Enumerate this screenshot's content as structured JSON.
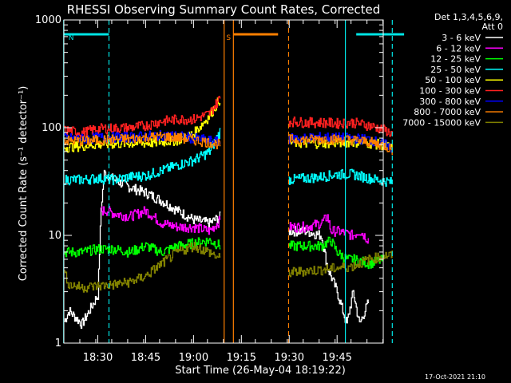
{
  "chart_data": {
    "type": "line",
    "title": "RHESSI Observing Summary Count Rates, Corrected",
    "xlabel": "Start Time (26-May-04 18:19:22)",
    "ylabel": "Corrected Count Rate (s⁻¹ detector⁻¹)",
    "y_scale": "log",
    "ylim": [
      1,
      1000
    ],
    "xlim": [
      "18:19:22",
      "19:59:30"
    ],
    "x_ticks": [
      "18:30",
      "18:45",
      "19:00",
      "19:15",
      "19:30",
      "19:45"
    ],
    "x_tick_minutes": [
      30,
      45,
      60,
      75,
      90,
      105
    ],
    "y_ticks": [
      "1",
      "10",
      "100",
      "1000"
    ],
    "y_tick_values": [
      1,
      10,
      100,
      1000
    ],
    "legend_header": [
      "Det 1,3,4,5,6,9,",
      "Att 0"
    ],
    "legend_position": "top-right",
    "footer_date": "17-Oct-2021 21:10",
    "flag_bars": [
      {
        "label": "N",
        "color": "#00e5e5",
        "x0": 19.3,
        "x1": 33.5
      },
      {
        "label": "S",
        "color": "#ff7f00",
        "x0": 72.5,
        "x1": 86.5
      },
      {
        "label": "",
        "color": "#00e5e5",
        "x0": 111.0,
        "x1": 126.0
      }
    ],
    "vlines": [
      {
        "m": 19.3,
        "color": "#00e5e5",
        "dash": false
      },
      {
        "m": 33.5,
        "color": "#00e5e5",
        "dash": true
      },
      {
        "m": 69.6,
        "color": "#ff7f00",
        "dash": false
      },
      {
        "m": 72.5,
        "color": "#ff7f00",
        "dash": false
      },
      {
        "m": 89.8,
        "color": "#ff7f00",
        "dash": true
      },
      {
        "m": 107.6,
        "color": "#00e5e5",
        "dash": false
      },
      {
        "m": 122.3,
        "color": "#00e5e5",
        "dash": true
      }
    ],
    "series": [
      {
        "name": "3 - 6 keV",
        "color": "#ffffff",
        "seg1": [
          [
            19.5,
            1.6
          ],
          [
            21,
            2.0
          ],
          [
            25,
            1.5
          ],
          [
            30,
            2.8
          ],
          [
            31,
            18
          ],
          [
            32,
            38
          ],
          [
            35,
            33
          ],
          [
            40,
            28
          ],
          [
            45,
            25
          ],
          [
            50,
            21
          ],
          [
            55,
            17
          ],
          [
            60,
            14
          ],
          [
            65,
            13
          ],
          [
            68.5,
            15
          ]
        ],
        "seg2": [
          [
            89.8,
            11
          ],
          [
            95,
            11
          ],
          [
            100,
            10
          ],
          [
            102,
            5
          ],
          [
            105,
            3
          ],
          [
            108,
            1.5
          ],
          [
            110,
            3
          ],
          [
            112,
            1.5
          ],
          [
            115,
            2.5
          ]
        ]
      },
      {
        "name": "6 - 12 keV",
        "color": "#ff00ff",
        "seg1": [
          [
            31,
            17
          ],
          [
            33,
            17
          ],
          [
            35,
            16
          ],
          [
            40,
            15
          ],
          [
            45,
            17
          ],
          [
            50,
            13
          ],
          [
            55,
            12
          ],
          [
            60,
            12
          ],
          [
            65,
            11
          ],
          [
            68.5,
            14
          ]
        ],
        "seg2": [
          [
            89.8,
            12
          ],
          [
            95,
            12
          ],
          [
            100,
            13
          ],
          [
            102,
            15
          ],
          [
            103,
            11
          ],
          [
            105,
            11
          ],
          [
            110,
            10
          ],
          [
            112,
            11
          ],
          [
            115,
            9
          ]
        ]
      },
      {
        "name": "12 - 25 keV",
        "color": "#00ff00",
        "seg1": [
          [
            19.5,
            7
          ],
          [
            25,
            7
          ],
          [
            30,
            7.5
          ],
          [
            35,
            7.5
          ],
          [
            40,
            7
          ],
          [
            45,
            8
          ],
          [
            50,
            7
          ],
          [
            55,
            8
          ],
          [
            60,
            8.5
          ],
          [
            65,
            9
          ],
          [
            68.5,
            8
          ]
        ],
        "seg2": [
          [
            89.8,
            8
          ],
          [
            95,
            8
          ],
          [
            100,
            8
          ],
          [
            103,
            9
          ],
          [
            105,
            7
          ],
          [
            108,
            6
          ],
          [
            110,
            6
          ],
          [
            115,
            5.5
          ],
          [
            120,
            6
          ]
        ]
      },
      {
        "name": "25 - 50 keV",
        "color": "#00ffff",
        "seg1": [
          [
            19.5,
            33
          ],
          [
            25,
            33
          ],
          [
            30,
            34
          ],
          [
            35,
            33
          ],
          [
            40,
            35
          ],
          [
            45,
            36
          ],
          [
            50,
            40
          ],
          [
            55,
            45
          ],
          [
            60,
            50
          ],
          [
            65,
            60
          ],
          [
            68.5,
            95
          ]
        ],
        "seg2": [
          [
            89.8,
            33
          ],
          [
            95,
            34
          ],
          [
            100,
            35
          ],
          [
            105,
            37
          ],
          [
            110,
            37
          ],
          [
            115,
            34
          ],
          [
            120,
            32
          ],
          [
            122.5,
            31
          ]
        ]
      },
      {
        "name": "50 - 100 keV",
        "color": "#ffff00",
        "seg1": [
          [
            19.5,
            66
          ],
          [
            25,
            68
          ],
          [
            30,
            70
          ],
          [
            35,
            71
          ],
          [
            40,
            72
          ],
          [
            45,
            72
          ],
          [
            50,
            74
          ],
          [
            55,
            77
          ],
          [
            60,
            88
          ],
          [
            65,
            130
          ],
          [
            68.5,
            190
          ]
        ],
        "seg2": [
          [
            89.8,
            73
          ],
          [
            95,
            72
          ],
          [
            100,
            72
          ],
          [
            105,
            73
          ],
          [
            110,
            74
          ],
          [
            115,
            72
          ],
          [
            120,
            69
          ],
          [
            122.5,
            63
          ]
        ]
      },
      {
        "name": "100 - 300 keV",
        "color": "#ff2020",
        "seg1": [
          [
            19.5,
            95
          ],
          [
            25,
            90
          ],
          [
            30,
            98
          ],
          [
            35,
            99
          ],
          [
            40,
            100
          ],
          [
            45,
            105
          ],
          [
            50,
            115
          ],
          [
            55,
            120
          ],
          [
            60,
            120
          ],
          [
            65,
            135
          ],
          [
            68.5,
            195
          ]
        ],
        "seg2": [
          [
            89.8,
            115
          ],
          [
            95,
            112
          ],
          [
            100,
            112
          ],
          [
            105,
            110
          ],
          [
            110,
            112
          ],
          [
            115,
            105
          ],
          [
            120,
            95
          ],
          [
            122.5,
            87
          ]
        ]
      },
      {
        "name": "300 - 800 keV",
        "color": "#0000ff",
        "seg1": [
          [
            19.5,
            80
          ],
          [
            25,
            79
          ],
          [
            30,
            81
          ],
          [
            35,
            82
          ],
          [
            40,
            82
          ],
          [
            45,
            84
          ],
          [
            50,
            85
          ],
          [
            55,
            84
          ],
          [
            60,
            80
          ],
          [
            65,
            76
          ],
          [
            68.5,
            73
          ]
        ],
        "seg2": [
          [
            89.8,
            80
          ],
          [
            95,
            80
          ],
          [
            100,
            82
          ],
          [
            105,
            81
          ],
          [
            110,
            80
          ],
          [
            115,
            78
          ],
          [
            120,
            70
          ],
          [
            122.5,
            64
          ]
        ]
      },
      {
        "name": "800 - 7000 keV",
        "color": "#ff7f00",
        "seg1": [
          [
            19.5,
            76
          ],
          [
            25,
            75
          ],
          [
            30,
            77
          ],
          [
            35,
            78
          ],
          [
            40,
            79
          ],
          [
            45,
            81
          ],
          [
            50,
            83
          ],
          [
            55,
            81
          ],
          [
            60,
            77
          ],
          [
            65,
            73
          ],
          [
            68.5,
            70
          ]
        ],
        "seg2": [
          [
            89.8,
            78
          ],
          [
            95,
            77
          ],
          [
            100,
            79
          ],
          [
            105,
            78
          ],
          [
            110,
            77
          ],
          [
            115,
            74
          ],
          [
            120,
            68
          ],
          [
            122.5,
            62
          ]
        ]
      },
      {
        "name": "7000 - 15000 keV",
        "color": "#808000",
        "seg1": [
          [
            19.5,
            4.5
          ],
          [
            21,
            3.5
          ],
          [
            25,
            3.3
          ],
          [
            30,
            3.4
          ],
          [
            35,
            3.5
          ],
          [
            40,
            3.7
          ],
          [
            45,
            4.2
          ],
          [
            50,
            5.5
          ],
          [
            55,
            7
          ],
          [
            60,
            8
          ],
          [
            65,
            7
          ],
          [
            68.5,
            6
          ]
        ],
        "seg2": [
          [
            89.8,
            4.5
          ],
          [
            95,
            4.7
          ],
          [
            100,
            4.8
          ],
          [
            105,
            5
          ],
          [
            110,
            5.2
          ],
          [
            115,
            6
          ],
          [
            120,
            6.5
          ],
          [
            122.5,
            6.5
          ]
        ]
      }
    ]
  }
}
